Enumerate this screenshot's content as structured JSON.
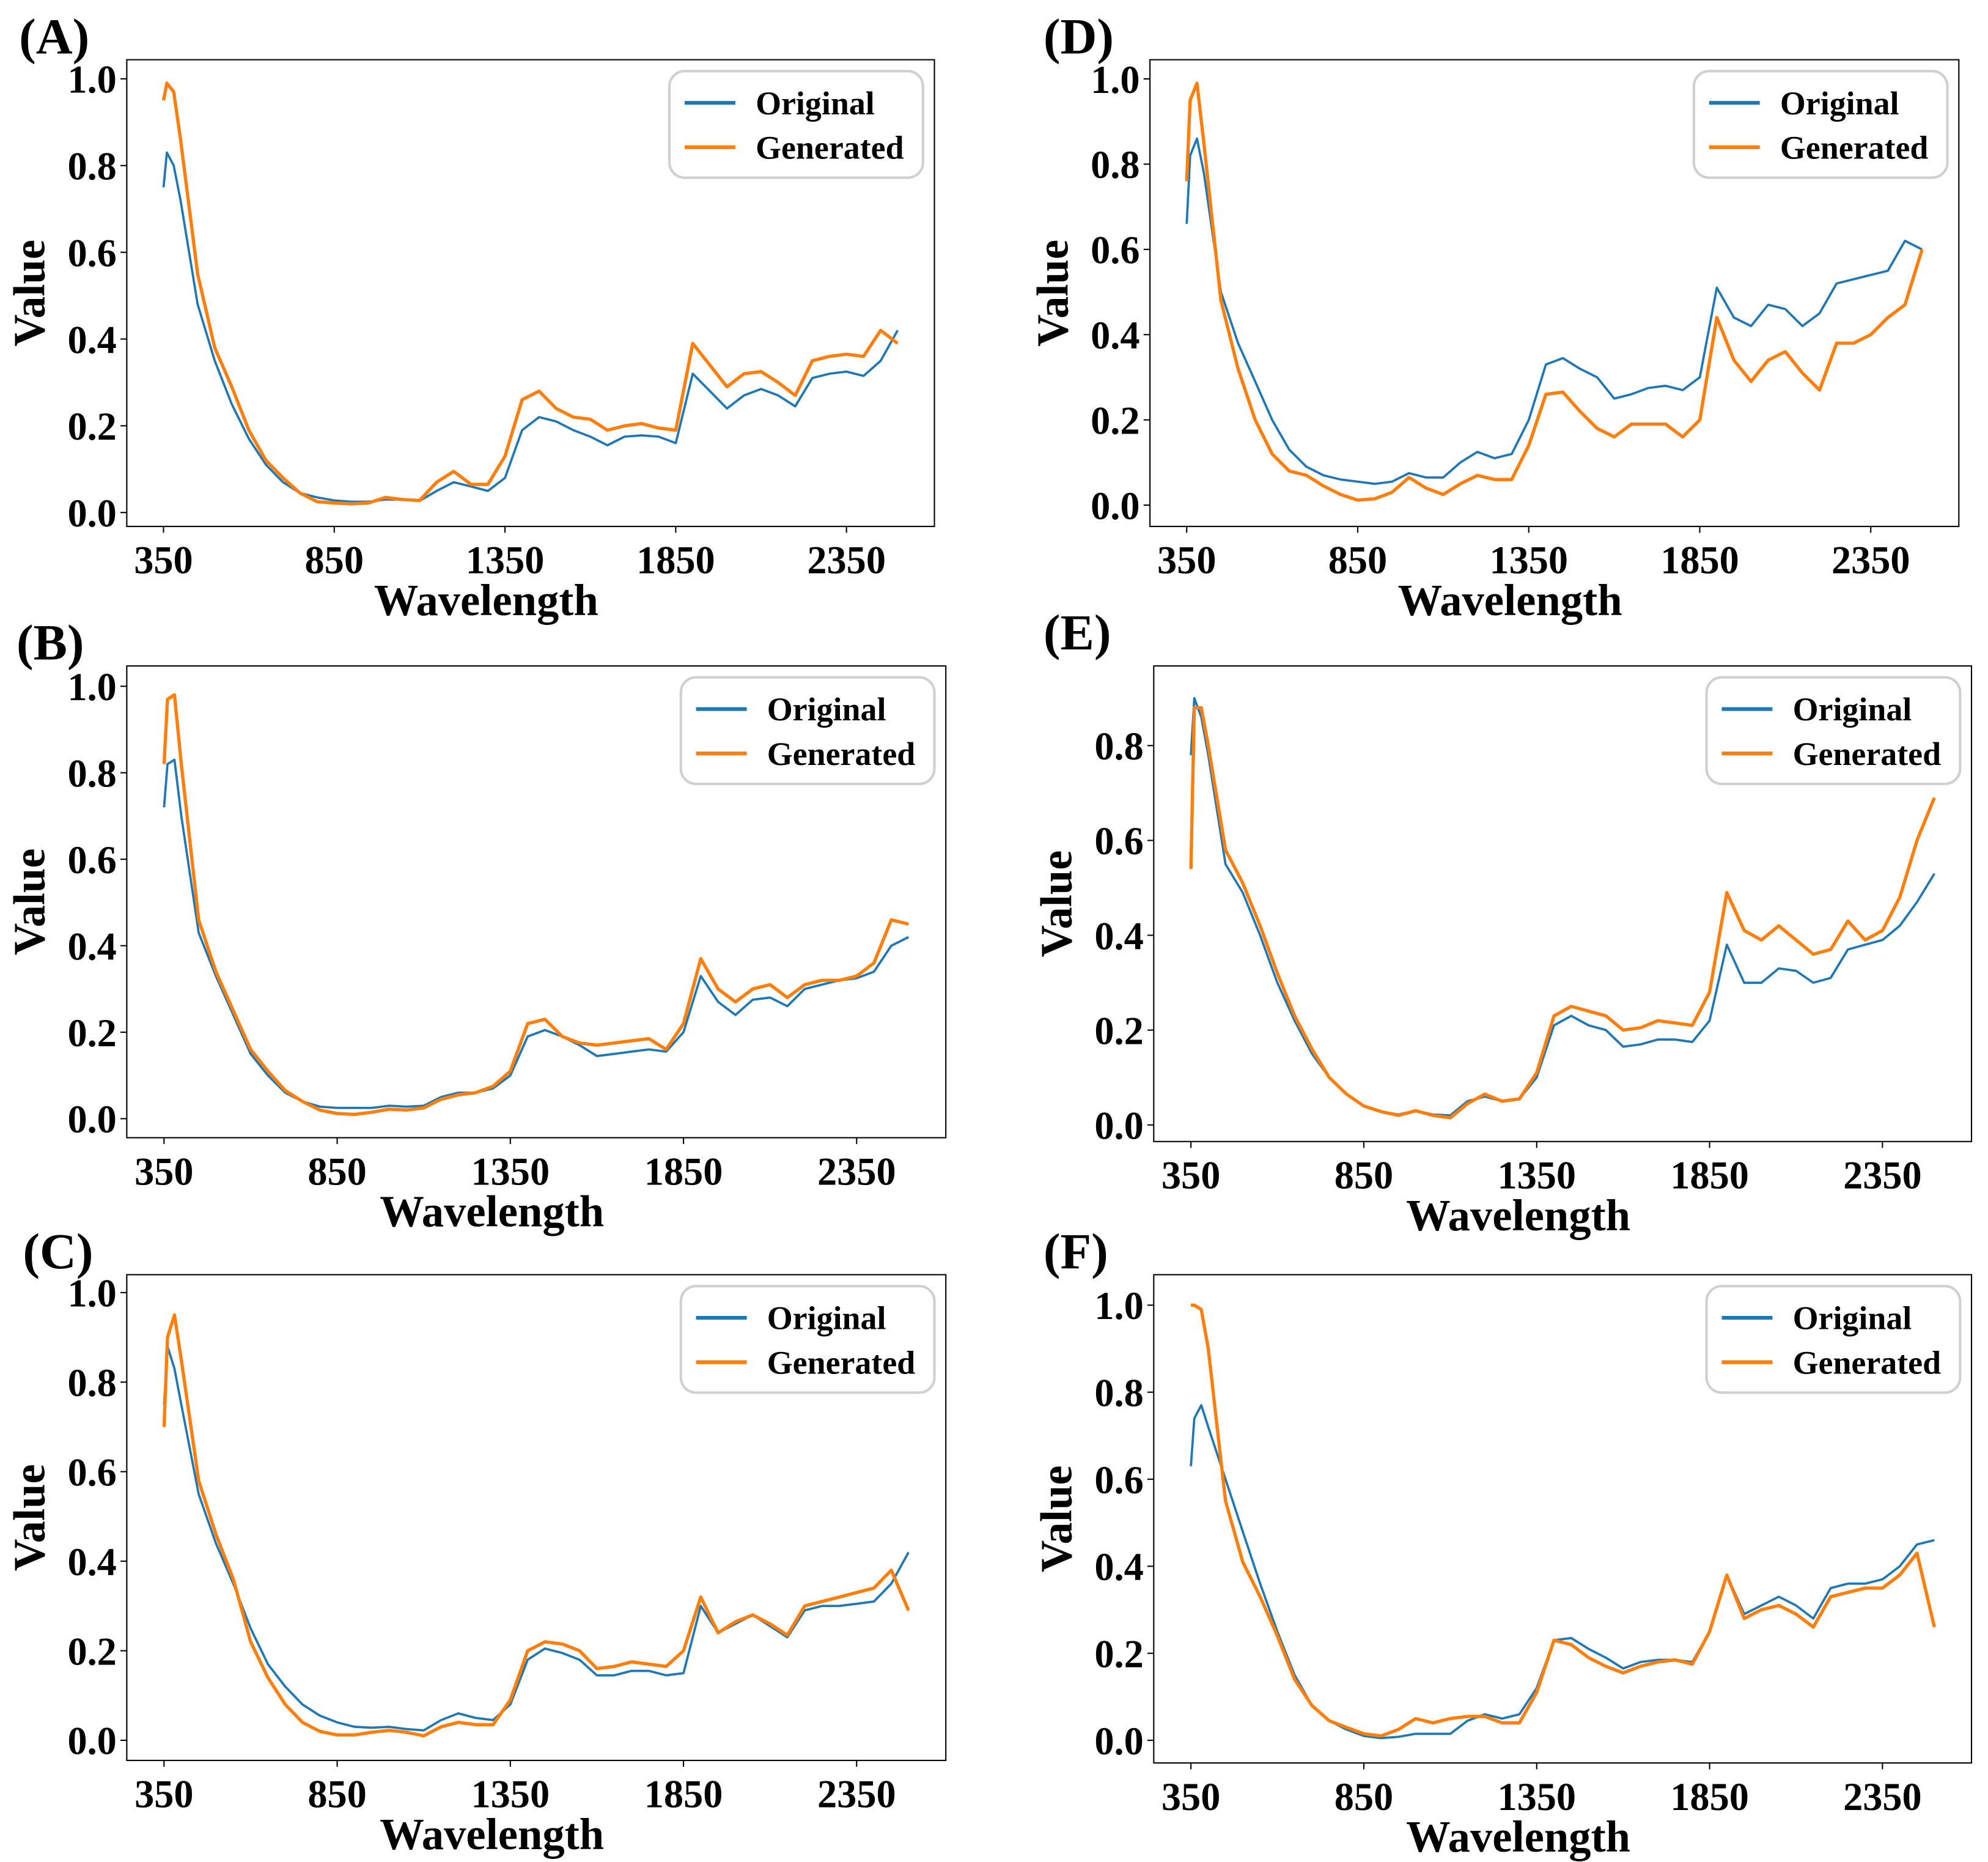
{
  "chart_data": [
    {
      "panel_label": "(A)",
      "type": "line",
      "xlabel": "Wavelength",
      "ylabel": "Value",
      "xlim": [
        242.5,
        2607.5
      ],
      "ylim": [
        -0.032,
        1.044
      ],
      "grid": false,
      "legend_placement": "top-right",
      "xticks": [
        "350",
        "850",
        "1350",
        "1850",
        "2350"
      ],
      "yticks": [
        "0.0",
        "0.2",
        "0.4",
        "0.6",
        "0.8",
        "1.0"
      ],
      "x": [
        350,
        360,
        380,
        400,
        450,
        500,
        550,
        600,
        650,
        700,
        750,
        800,
        850,
        900,
        950,
        1000,
        1050,
        1100,
        1150,
        1200,
        1250,
        1300,
        1350,
        1400,
        1450,
        1500,
        1550,
        1600,
        1650,
        1700,
        1750,
        1800,
        1850,
        1900,
        1950,
        2000,
        2050,
        2100,
        2150,
        2200,
        2250,
        2300,
        2350,
        2400,
        2450,
        2500
      ],
      "series": [
        {
          "name": "Original",
          "color": "#1f77b4",
          "values": [
            0.75,
            0.83,
            0.8,
            0.72,
            0.48,
            0.35,
            0.25,
            0.17,
            0.11,
            0.07,
            0.045,
            0.035,
            0.028,
            0.025,
            0.025,
            0.03,
            0.03,
            0.027,
            0.05,
            0.07,
            0.06,
            0.05,
            0.08,
            0.19,
            0.22,
            0.21,
            0.19,
            0.175,
            0.155,
            0.175,
            0.178,
            0.175,
            0.16,
            0.32,
            0.28,
            0.24,
            0.27,
            0.285,
            0.27,
            0.245,
            0.31,
            0.32,
            0.325,
            0.315,
            0.35,
            0.42
          ]
        },
        {
          "name": "Generated",
          "color": "#ff7f0e",
          "values": [
            0.95,
            0.99,
            0.97,
            0.86,
            0.55,
            0.38,
            0.29,
            0.19,
            0.12,
            0.08,
            0.045,
            0.025,
            0.022,
            0.02,
            0.022,
            0.035,
            0.03,
            0.028,
            0.07,
            0.095,
            0.065,
            0.065,
            0.13,
            0.26,
            0.28,
            0.24,
            0.22,
            0.215,
            0.19,
            0.2,
            0.205,
            0.195,
            0.19,
            0.39,
            0.34,
            0.29,
            0.32,
            0.325,
            0.3,
            0.27,
            0.35,
            0.36,
            0.365,
            0.36,
            0.42,
            0.39
          ]
        }
      ]
    },
    {
      "panel_label": "(B)",
      "type": "line",
      "xlabel": "Wavelength",
      "ylabel": "Value",
      "xlim": [
        242.5,
        2607.5
      ],
      "ylim": [
        -0.044,
        1.047
      ],
      "grid": false,
      "legend_placement": "top-right",
      "xticks": [
        "350",
        "850",
        "1350",
        "1850",
        "2350"
      ],
      "yticks": [
        "0.0",
        "0.2",
        "0.4",
        "0.6",
        "0.8",
        "1.0"
      ],
      "x": [
        350,
        360,
        380,
        400,
        450,
        500,
        550,
        600,
        650,
        700,
        750,
        800,
        850,
        900,
        950,
        1000,
        1050,
        1100,
        1150,
        1200,
        1250,
        1300,
        1350,
        1400,
        1450,
        1500,
        1550,
        1600,
        1650,
        1700,
        1750,
        1800,
        1850,
        1900,
        1950,
        2000,
        2050,
        2100,
        2150,
        2200,
        2250,
        2300,
        2350,
        2400,
        2450,
        2500
      ],
      "series": [
        {
          "name": "Original",
          "color": "#1f77b4",
          "values": [
            0.72,
            0.82,
            0.83,
            0.7,
            0.43,
            0.33,
            0.24,
            0.15,
            0.1,
            0.06,
            0.04,
            0.028,
            0.025,
            0.025,
            0.025,
            0.03,
            0.028,
            0.03,
            0.05,
            0.06,
            0.06,
            0.07,
            0.1,
            0.19,
            0.205,
            0.19,
            0.17,
            0.145,
            0.15,
            0.155,
            0.16,
            0.155,
            0.2,
            0.33,
            0.27,
            0.24,
            0.275,
            0.28,
            0.26,
            0.3,
            0.31,
            0.32,
            0.325,
            0.34,
            0.4,
            0.42
          ]
        },
        {
          "name": "Generated",
          "color": "#ff7f0e",
          "values": [
            0.82,
            0.97,
            0.98,
            0.82,
            0.46,
            0.34,
            0.25,
            0.16,
            0.11,
            0.065,
            0.04,
            0.02,
            0.012,
            0.01,
            0.015,
            0.022,
            0.02,
            0.025,
            0.045,
            0.055,
            0.06,
            0.075,
            0.11,
            0.22,
            0.23,
            0.19,
            0.175,
            0.17,
            0.175,
            0.18,
            0.185,
            0.16,
            0.22,
            0.37,
            0.3,
            0.27,
            0.3,
            0.31,
            0.28,
            0.31,
            0.32,
            0.32,
            0.33,
            0.36,
            0.46,
            0.45
          ]
        }
      ]
    },
    {
      "panel_label": "(C)",
      "type": "line",
      "xlabel": "Wavelength",
      "ylabel": "Value",
      "xlim": [
        242.5,
        2607.5
      ],
      "ylim": [
        -0.045,
        1.04
      ],
      "grid": false,
      "legend_placement": "top-right",
      "xticks": [
        "350",
        "850",
        "1350",
        "1850",
        "2350"
      ],
      "yticks": [
        "0.0",
        "0.2",
        "0.4",
        "0.6",
        "0.8",
        "1.0"
      ],
      "x": [
        350,
        360,
        380,
        400,
        450,
        500,
        550,
        600,
        650,
        700,
        750,
        800,
        850,
        900,
        950,
        1000,
        1050,
        1100,
        1150,
        1200,
        1250,
        1300,
        1350,
        1400,
        1450,
        1500,
        1550,
        1600,
        1650,
        1700,
        1750,
        1800,
        1850,
        1900,
        1950,
        2000,
        2050,
        2100,
        2150,
        2200,
        2250,
        2300,
        2350,
        2400,
        2450,
        2500
      ],
      "series": [
        {
          "name": "Original",
          "color": "#1f77b4",
          "values": [
            0.75,
            0.88,
            0.83,
            0.75,
            0.55,
            0.44,
            0.35,
            0.25,
            0.17,
            0.12,
            0.08,
            0.055,
            0.04,
            0.03,
            0.028,
            0.03,
            0.025,
            0.022,
            0.045,
            0.06,
            0.05,
            0.045,
            0.08,
            0.18,
            0.205,
            0.195,
            0.18,
            0.145,
            0.145,
            0.155,
            0.155,
            0.145,
            0.15,
            0.3,
            0.24,
            0.26,
            0.28,
            0.255,
            0.23,
            0.29,
            0.3,
            0.3,
            0.305,
            0.31,
            0.35,
            0.42
          ]
        },
        {
          "name": "Generated",
          "color": "#ff7f0e",
          "values": [
            0.7,
            0.9,
            0.95,
            0.85,
            0.58,
            0.46,
            0.36,
            0.22,
            0.14,
            0.08,
            0.04,
            0.02,
            0.012,
            0.012,
            0.018,
            0.022,
            0.018,
            0.01,
            0.03,
            0.04,
            0.035,
            0.035,
            0.09,
            0.2,
            0.22,
            0.215,
            0.2,
            0.16,
            0.165,
            0.175,
            0.17,
            0.165,
            0.2,
            0.32,
            0.24,
            0.265,
            0.28,
            0.26,
            0.235,
            0.3,
            0.31,
            0.32,
            0.33,
            0.34,
            0.38,
            0.29
          ]
        }
      ]
    },
    {
      "panel_label": "(D)",
      "type": "line",
      "xlabel": "Wavelength",
      "ylabel": "Value",
      "xlim": [
        242.5,
        2607.5
      ],
      "ylim": [
        -0.05,
        1.045
      ],
      "grid": false,
      "legend_placement": "top-right",
      "xticks": [
        "350",
        "850",
        "1350",
        "1850",
        "2350"
      ],
      "yticks": [
        "0.0",
        "0.2",
        "0.4",
        "0.6",
        "0.8",
        "1.0"
      ],
      "x": [
        350,
        360,
        380,
        400,
        450,
        500,
        550,
        600,
        650,
        700,
        750,
        800,
        850,
        900,
        950,
        1000,
        1050,
        1100,
        1150,
        1200,
        1250,
        1300,
        1350,
        1400,
        1450,
        1500,
        1550,
        1600,
        1650,
        1700,
        1750,
        1800,
        1850,
        1900,
        1950,
        2000,
        2050,
        2100,
        2150,
        2200,
        2250,
        2300,
        2350,
        2400,
        2450,
        2500
      ],
      "series": [
        {
          "name": "Original",
          "color": "#1f77b4",
          "values": [
            0.66,
            0.82,
            0.86,
            0.78,
            0.5,
            0.38,
            0.29,
            0.2,
            0.13,
            0.09,
            0.07,
            0.06,
            0.055,
            0.05,
            0.055,
            0.075,
            0.065,
            0.065,
            0.1,
            0.125,
            0.11,
            0.12,
            0.2,
            0.33,
            0.345,
            0.32,
            0.3,
            0.25,
            0.26,
            0.275,
            0.28,
            0.27,
            0.3,
            0.51,
            0.44,
            0.42,
            0.47,
            0.46,
            0.42,
            0.45,
            0.52,
            0.53,
            0.54,
            0.55,
            0.62,
            0.6
          ]
        },
        {
          "name": "Generated",
          "color": "#ff7f0e",
          "values": [
            0.76,
            0.95,
            0.99,
            0.85,
            0.48,
            0.32,
            0.2,
            0.12,
            0.08,
            0.07,
            0.045,
            0.025,
            0.012,
            0.015,
            0.03,
            0.065,
            0.04,
            0.025,
            0.05,
            0.07,
            0.06,
            0.06,
            0.14,
            0.26,
            0.265,
            0.22,
            0.18,
            0.16,
            0.19,
            0.19,
            0.19,
            0.16,
            0.2,
            0.44,
            0.34,
            0.29,
            0.34,
            0.36,
            0.31,
            0.27,
            0.38,
            0.38,
            0.4,
            0.44,
            0.47,
            0.6
          ]
        }
      ]
    },
    {
      "panel_label": "(E)",
      "type": "line",
      "xlabel": "Wavelength",
      "ylabel": "Value",
      "xlim": [
        242.5,
        2607.5
      ],
      "ylim": [
        -0.035,
        0.968
      ],
      "grid": false,
      "legend_placement": "top-right",
      "xticks": [
        "350",
        "850",
        "1350",
        "1850",
        "2350"
      ],
      "yticks": [
        "0.0",
        "0.2",
        "0.4",
        "0.6",
        "0.8"
      ],
      "x": [
        350,
        360,
        380,
        400,
        450,
        500,
        550,
        600,
        650,
        700,
        750,
        800,
        850,
        900,
        950,
        1000,
        1050,
        1100,
        1150,
        1200,
        1250,
        1300,
        1350,
        1400,
        1450,
        1500,
        1550,
        1600,
        1650,
        1700,
        1750,
        1800,
        1850,
        1900,
        1950,
        2000,
        2050,
        2100,
        2150,
        2200,
        2250,
        2300,
        2350,
        2400,
        2450,
        2500
      ],
      "series": [
        {
          "name": "Original",
          "color": "#1f77b4",
          "values": [
            0.78,
            0.9,
            0.86,
            0.78,
            0.55,
            0.49,
            0.4,
            0.3,
            0.22,
            0.15,
            0.1,
            0.065,
            0.04,
            0.028,
            0.022,
            0.03,
            0.022,
            0.02,
            0.05,
            0.06,
            0.05,
            0.055,
            0.1,
            0.21,
            0.23,
            0.21,
            0.2,
            0.165,
            0.17,
            0.18,
            0.18,
            0.175,
            0.22,
            0.38,
            0.3,
            0.3,
            0.33,
            0.325,
            0.3,
            0.31,
            0.37,
            0.38,
            0.39,
            0.42,
            0.47,
            0.53
          ]
        },
        {
          "name": "Generated",
          "color": "#ff7f0e",
          "values": [
            0.54,
            0.88,
            0.88,
            0.8,
            0.58,
            0.51,
            0.42,
            0.32,
            0.23,
            0.16,
            0.1,
            0.065,
            0.04,
            0.028,
            0.02,
            0.03,
            0.02,
            0.015,
            0.045,
            0.065,
            0.05,
            0.055,
            0.11,
            0.23,
            0.25,
            0.24,
            0.23,
            0.2,
            0.205,
            0.22,
            0.215,
            0.21,
            0.28,
            0.49,
            0.41,
            0.39,
            0.42,
            0.39,
            0.36,
            0.37,
            0.43,
            0.39,
            0.41,
            0.48,
            0.6,
            0.69
          ]
        }
      ]
    },
    {
      "panel_label": "(F)",
      "type": "line",
      "xlabel": "Wavelength",
      "ylabel": "Value",
      "xlim": [
        242.5,
        2607.5
      ],
      "ylim": [
        -0.052,
        1.07
      ],
      "grid": false,
      "legend_placement": "top-right",
      "xticks": [
        "350",
        "850",
        "1350",
        "1850",
        "2350"
      ],
      "yticks": [
        "0.0",
        "0.2",
        "0.4",
        "0.6",
        "0.8",
        "1.0"
      ],
      "x": [
        350,
        360,
        380,
        400,
        450,
        500,
        550,
        600,
        650,
        700,
        750,
        800,
        850,
        900,
        950,
        1000,
        1050,
        1100,
        1150,
        1200,
        1250,
        1300,
        1350,
        1400,
        1450,
        1500,
        1550,
        1600,
        1650,
        1700,
        1750,
        1800,
        1850,
        1900,
        1950,
        2000,
        2050,
        2100,
        2150,
        2200,
        2250,
        2300,
        2350,
        2400,
        2450,
        2500
      ],
      "series": [
        {
          "name": "Original",
          "color": "#1f77b4",
          "values": [
            0.63,
            0.74,
            0.77,
            0.72,
            0.6,
            0.48,
            0.36,
            0.25,
            0.15,
            0.08,
            0.045,
            0.025,
            0.01,
            0.005,
            0.008,
            0.015,
            0.015,
            0.015,
            0.045,
            0.06,
            0.05,
            0.06,
            0.12,
            0.23,
            0.235,
            0.21,
            0.19,
            0.165,
            0.18,
            0.185,
            0.185,
            0.18,
            0.25,
            0.38,
            0.29,
            0.31,
            0.33,
            0.31,
            0.28,
            0.35,
            0.36,
            0.36,
            0.37,
            0.4,
            0.45,
            0.46
          ]
        },
        {
          "name": "Generated",
          "color": "#ff7f0e",
          "values": [
            1.0,
            1.0,
            0.99,
            0.9,
            0.55,
            0.41,
            0.33,
            0.24,
            0.14,
            0.08,
            0.045,
            0.03,
            0.015,
            0.01,
            0.025,
            0.05,
            0.04,
            0.05,
            0.055,
            0.055,
            0.04,
            0.04,
            0.11,
            0.23,
            0.22,
            0.19,
            0.17,
            0.155,
            0.17,
            0.18,
            0.185,
            0.175,
            0.25,
            0.38,
            0.28,
            0.3,
            0.31,
            0.29,
            0.26,
            0.33,
            0.34,
            0.35,
            0.35,
            0.38,
            0.43,
            0.26
          ]
        }
      ]
    }
  ]
}
